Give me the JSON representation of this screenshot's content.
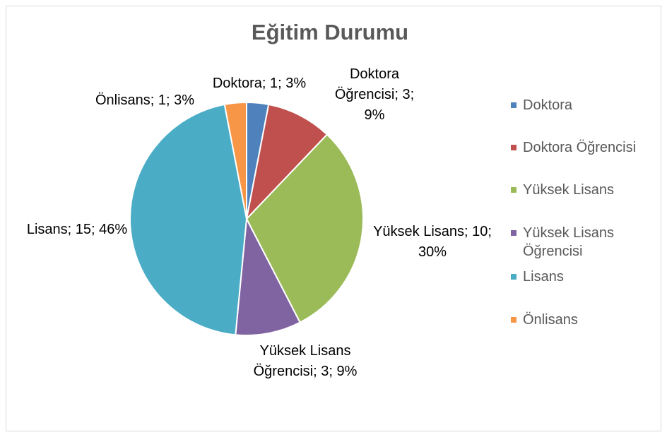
{
  "chart_data": {
    "type": "pie",
    "title": "Eğitim Durumu",
    "categories": [
      "Doktora",
      "Doktora Öğrencisi",
      "Yüksek Lisans",
      "Yüksek Lisans Öğrencisi",
      "Lisans",
      "Önlisans"
    ],
    "values": [
      1,
      3,
      10,
      3,
      15,
      1
    ],
    "value_labels": [
      "Doktora; 1; 3%",
      "Doktora Öğrencisi; 3; 9%",
      "Yüksek Lisans; 10; 30%",
      "Yüksek Lisans Öğrencisi; 3; 9%",
      "Lisans; 15; 46%",
      "Önlisans; 1; 3%"
    ],
    "colors": [
      "#4f81bd",
      "#c0504d",
      "#9bbb59",
      "#8064a2",
      "#4bacc6",
      "#f79646"
    ],
    "legend": "right"
  }
}
